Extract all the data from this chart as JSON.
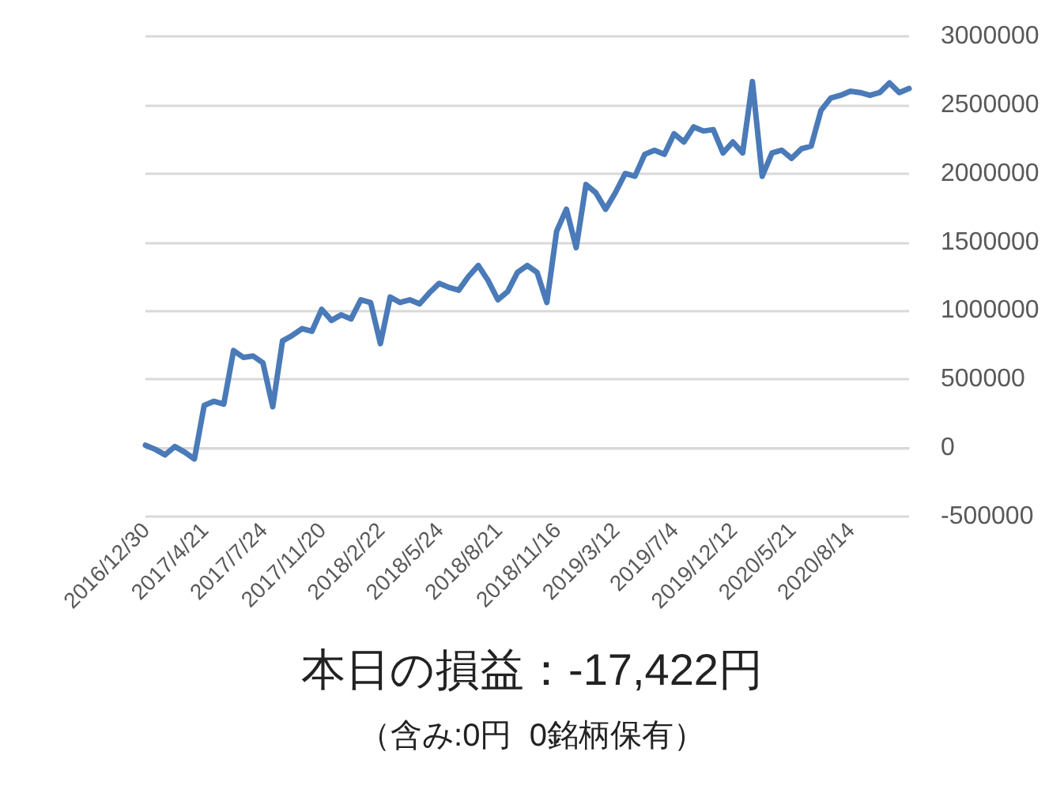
{
  "chart_data": {
    "type": "line",
    "title": "本日の損益：-17,422円",
    "subtitle": "（含み:0円  0銘柄保有）",
    "categories": [
      "2016/12/30",
      null,
      null,
      null,
      null,
      null,
      "2017/4/21",
      null,
      null,
      null,
      null,
      null,
      "2017/7/24",
      null,
      null,
      null,
      null,
      null,
      "2017/11/20",
      null,
      null,
      null,
      null,
      null,
      "2018/2/22",
      null,
      null,
      null,
      null,
      null,
      "2018/5/24",
      null,
      null,
      null,
      null,
      null,
      "2018/8/21",
      null,
      null,
      null,
      null,
      null,
      "2018/11/16",
      null,
      null,
      null,
      null,
      null,
      "2019/3/12",
      null,
      null,
      null,
      null,
      null,
      "2019/7/4",
      null,
      null,
      null,
      null,
      null,
      "2019/12/12",
      null,
      null,
      null,
      null,
      null,
      "2020/5/21",
      null,
      null,
      null,
      null,
      null,
      "2020/8/14",
      null,
      null,
      null,
      null,
      null,
      null
    ],
    "values": [
      20000,
      -10000,
      -50000,
      10000,
      -30000,
      -80000,
      310000,
      340000,
      320000,
      710000,
      660000,
      670000,
      620000,
      300000,
      780000,
      820000,
      870000,
      850000,
      1010000,
      930000,
      970000,
      940000,
      1080000,
      1060000,
      760000,
      1100000,
      1060000,
      1080000,
      1050000,
      1130000,
      1200000,
      1170000,
      1150000,
      1250000,
      1330000,
      1220000,
      1080000,
      1140000,
      1280000,
      1330000,
      1280000,
      1060000,
      1580000,
      1740000,
      1460000,
      1920000,
      1860000,
      1740000,
      1860000,
      2000000,
      1980000,
      2140000,
      2170000,
      2140000,
      2290000,
      2230000,
      2340000,
      2310000,
      2320000,
      2150000,
      2230000,
      2150000,
      2670000,
      1980000,
      2150000,
      2170000,
      2110000,
      2180000,
      2200000,
      2460000,
      2550000,
      2570000,
      2600000,
      2590000,
      2570000,
      2590000,
      2660000,
      2590000,
      2620000
    ],
    "color": "#4a7ab8",
    "ylim": [
      -500000,
      3000000
    ],
    "yticks": [
      -500000,
      0,
      500000,
      1000000,
      1500000,
      2000000,
      2500000,
      3000000
    ],
    "grid": "y"
  }
}
